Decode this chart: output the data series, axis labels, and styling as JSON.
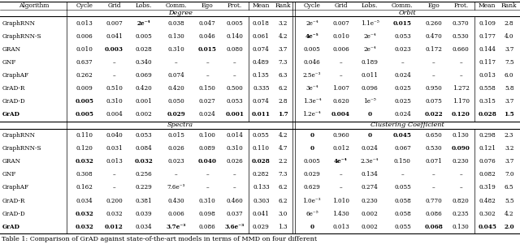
{
  "caption": "Table 1: Comparison of GrAD against state-of-the-art models in terms of MMD on four different",
  "top_section": {
    "left_label": "Degree",
    "right_label": "Orbit",
    "rows": [
      {
        "alg": "GraphRNN",
        "deg": [
          "0.013",
          "0.007",
          "2e⁻⁴",
          "0.038",
          "0.047",
          "0.005",
          "0.018",
          "3.2"
        ],
        "deg_bold": [
          false,
          false,
          true,
          false,
          false,
          false,
          false,
          false
        ],
        "orb": [
          "2e⁻⁴",
          "0.007",
          "1.1e⁻⁵",
          "0.015",
          "0.260",
          "0.370",
          "0.109",
          "2.8"
        ],
        "orb_bold": [
          false,
          false,
          false,
          true,
          false,
          false,
          false,
          false
        ]
      },
      {
        "alg": "GraphRNN-S",
        "deg": [
          "0.006",
          "0.041",
          "0.005",
          "0.130",
          "0.046",
          "0.140",
          "0.061",
          "4.2"
        ],
        "deg_bold": [
          false,
          false,
          false,
          false,
          false,
          false,
          false,
          false
        ],
        "orb": [
          "4e⁻⁵",
          "0.010",
          "2e⁻⁴",
          "0.053",
          "0.470",
          "0.530",
          "0.177",
          "4.0"
        ],
        "orb_bold": [
          true,
          false,
          false,
          false,
          false,
          false,
          false,
          false
        ]
      },
      {
        "alg": "GRAN",
        "deg": [
          "0.010",
          "0.003",
          "0.028",
          "0.310",
          "0.015",
          "0.080",
          "0.074",
          "3.7"
        ],
        "deg_bold": [
          false,
          true,
          false,
          false,
          true,
          false,
          false,
          false
        ],
        "orb": [
          "0.005",
          "0.006",
          "2e⁻⁴",
          "0.023",
          "0.172",
          "0.660",
          "0.144",
          "3.7"
        ],
        "orb_bold": [
          false,
          false,
          false,
          false,
          false,
          false,
          false,
          false
        ]
      },
      {
        "alg": "GNF",
        "deg": [
          "0.637",
          "–",
          "0.340",
          "–",
          "–",
          "–",
          "0.489",
          "7.3"
        ],
        "deg_bold": [
          false,
          false,
          false,
          false,
          false,
          false,
          false,
          false
        ],
        "orb": [
          "0.046",
          "–",
          "0.189",
          "–",
          "–",
          "–",
          "0.117",
          "7.5"
        ],
        "orb_bold": [
          false,
          false,
          false,
          false,
          false,
          false,
          false,
          false
        ]
      },
      {
        "alg": "GraphAF",
        "deg": [
          "0.262",
          "–",
          "0.069",
          "0.074",
          "–",
          "–",
          "0.135",
          "6.3"
        ],
        "deg_bold": [
          false,
          false,
          false,
          false,
          false,
          false,
          false,
          false
        ],
        "orb": [
          "2.5e⁻³",
          "–",
          "0.011",
          "0.024",
          "–",
          "–",
          "0.013",
          "6.0"
        ],
        "orb_bold": [
          false,
          false,
          false,
          false,
          false,
          false,
          false,
          false
        ]
      },
      {
        "alg": "GrAD-R",
        "deg": [
          "0.009",
          "0.510",
          "0.420",
          "0.420",
          "0.150",
          "0.500",
          "0.335",
          "6.2"
        ],
        "deg_bold": [
          false,
          false,
          false,
          false,
          false,
          false,
          false,
          false
        ],
        "orb": [
          "3e⁻⁴",
          "1.007",
          "0.096",
          "0.025",
          "0.950",
          "1.272",
          "0.558",
          "5.8"
        ],
        "orb_bold": [
          false,
          false,
          false,
          false,
          false,
          false,
          false,
          false
        ]
      },
      {
        "alg": "GrAD-D",
        "deg": [
          "0.005",
          "0.310",
          "0.001",
          "0.050",
          "0.027",
          "0.053",
          "0.074",
          "2.8"
        ],
        "deg_bold": [
          true,
          false,
          false,
          false,
          false,
          false,
          false,
          false
        ],
        "orb": [
          "1.3e⁻⁴",
          "0.620",
          "1e⁻⁵",
          "0.025",
          "0.075",
          "1.170",
          "0.315",
          "3.7"
        ],
        "orb_bold": [
          false,
          false,
          false,
          false,
          false,
          false,
          false,
          false
        ]
      },
      {
        "alg": "GrAD",
        "deg": [
          "0.005",
          "0.004",
          "0.002",
          "0.029",
          "0.024",
          "0.001",
          "0.011",
          "1.7"
        ],
        "deg_bold": [
          true,
          false,
          false,
          true,
          false,
          true,
          true,
          true
        ],
        "orb": [
          "1.2e⁻⁴",
          "0.004",
          "0",
          "0.024",
          "0.022",
          "0.120",
          "0.028",
          "1.5"
        ],
        "orb_bold": [
          false,
          true,
          true,
          false,
          true,
          true,
          true,
          true
        ]
      }
    ]
  },
  "bottom_section": {
    "left_label": "Spectra",
    "right_label": "Clustering Coefficient",
    "rows": [
      {
        "alg": "GraphRNN",
        "left": [
          "0.110",
          "0.040",
          "0.053",
          "0.015",
          "0.100",
          "0.014",
          "0.055",
          "4.2"
        ],
        "left_bold": [
          false,
          false,
          false,
          false,
          false,
          false,
          false,
          false
        ],
        "right": [
          "0",
          "0.960",
          "0",
          "0.045",
          "0.650",
          "0.130",
          "0.298",
          "2.3"
        ],
        "right_bold": [
          true,
          false,
          true,
          true,
          false,
          false,
          false,
          false
        ]
      },
      {
        "alg": "GraphRNN-S",
        "left": [
          "0.120",
          "0.031",
          "0.084",
          "0.026",
          "0.089",
          "0.310",
          "0.110",
          "4.7"
        ],
        "left_bold": [
          false,
          false,
          false,
          false,
          false,
          false,
          false,
          false
        ],
        "right": [
          "0",
          "0.012",
          "0.024",
          "0.067",
          "0.530",
          "0.090",
          "0.121",
          "3.2"
        ],
        "right_bold": [
          true,
          false,
          false,
          false,
          false,
          true,
          false,
          false
        ]
      },
      {
        "alg": "GRAN",
        "left": [
          "0.032",
          "0.013",
          "0.032",
          "0.023",
          "0.040",
          "0.026",
          "0.028",
          "2.2"
        ],
        "left_bold": [
          true,
          false,
          true,
          false,
          true,
          false,
          true,
          false
        ],
        "right": [
          "0.005",
          "4e⁻⁴",
          "2.3e⁻⁴",
          "0.150",
          "0.071",
          "0.230",
          "0.076",
          "3.7"
        ],
        "right_bold": [
          false,
          true,
          false,
          false,
          false,
          false,
          false,
          false
        ]
      },
      {
        "alg": "GNF",
        "left": [
          "0.308",
          "–",
          "0.256",
          "–",
          "–",
          "–",
          "0.282",
          "7.3"
        ],
        "left_bold": [
          false,
          false,
          false,
          false,
          false,
          false,
          false,
          false
        ],
        "right": [
          "0.029",
          "–",
          "0.134",
          "–",
          "–",
          "–",
          "0.082",
          "7.0"
        ],
        "right_bold": [
          false,
          false,
          false,
          false,
          false,
          false,
          false,
          false
        ]
      },
      {
        "alg": "GraphAF",
        "left": [
          "0.162",
          "–",
          "0.229",
          "7.6e⁻³",
          "–",
          "–",
          "0.133",
          "6.2"
        ],
        "left_bold": [
          false,
          false,
          false,
          false,
          false,
          false,
          false,
          false
        ],
        "right": [
          "0.629",
          "–",
          "0.274",
          "0.055",
          "–",
          "–",
          "0.319",
          "6.5"
        ],
        "right_bold": [
          false,
          false,
          false,
          false,
          false,
          false,
          false,
          false
        ]
      },
      {
        "alg": "GrAD-R",
        "left": [
          "0.034",
          "0.200",
          "0.381",
          "0.430",
          "0.310",
          "0.460",
          "0.303",
          "6.2"
        ],
        "left_bold": [
          false,
          false,
          false,
          false,
          false,
          false,
          false,
          false
        ],
        "right": [
          "1.0e⁻³",
          "1.010",
          "0.230",
          "0.058",
          "0.770",
          "0.820",
          "0.482",
          "5.5"
        ],
        "right_bold": [
          false,
          false,
          false,
          false,
          false,
          false,
          false,
          false
        ]
      },
      {
        "alg": "GrAD-D",
        "left": [
          "0.032",
          "0.032",
          "0.039",
          "0.006",
          "0.098",
          "0.037",
          "0.041",
          "3.0"
        ],
        "left_bold": [
          true,
          false,
          false,
          false,
          false,
          false,
          false,
          false
        ],
        "right": [
          "6e⁻⁵",
          "1.430",
          "0.002",
          "0.058",
          "0.086",
          "0.235",
          "0.302",
          "4.2"
        ],
        "right_bold": [
          false,
          false,
          false,
          false,
          false,
          false,
          false,
          false
        ]
      },
      {
        "alg": "GrAD",
        "left": [
          "0.032",
          "0.012",
          "0.034",
          "3.7e⁻³",
          "0.086",
          "3.6e⁻³",
          "0.029",
          "1.3"
        ],
        "left_bold": [
          true,
          true,
          false,
          true,
          false,
          true,
          false,
          false
        ],
        "right": [
          "0",
          "0.013",
          "0.002",
          "0.055",
          "0.068",
          "0.130",
          "0.045",
          "2.0"
        ],
        "right_bold": [
          true,
          false,
          false,
          false,
          true,
          false,
          true,
          true
        ]
      }
    ]
  }
}
